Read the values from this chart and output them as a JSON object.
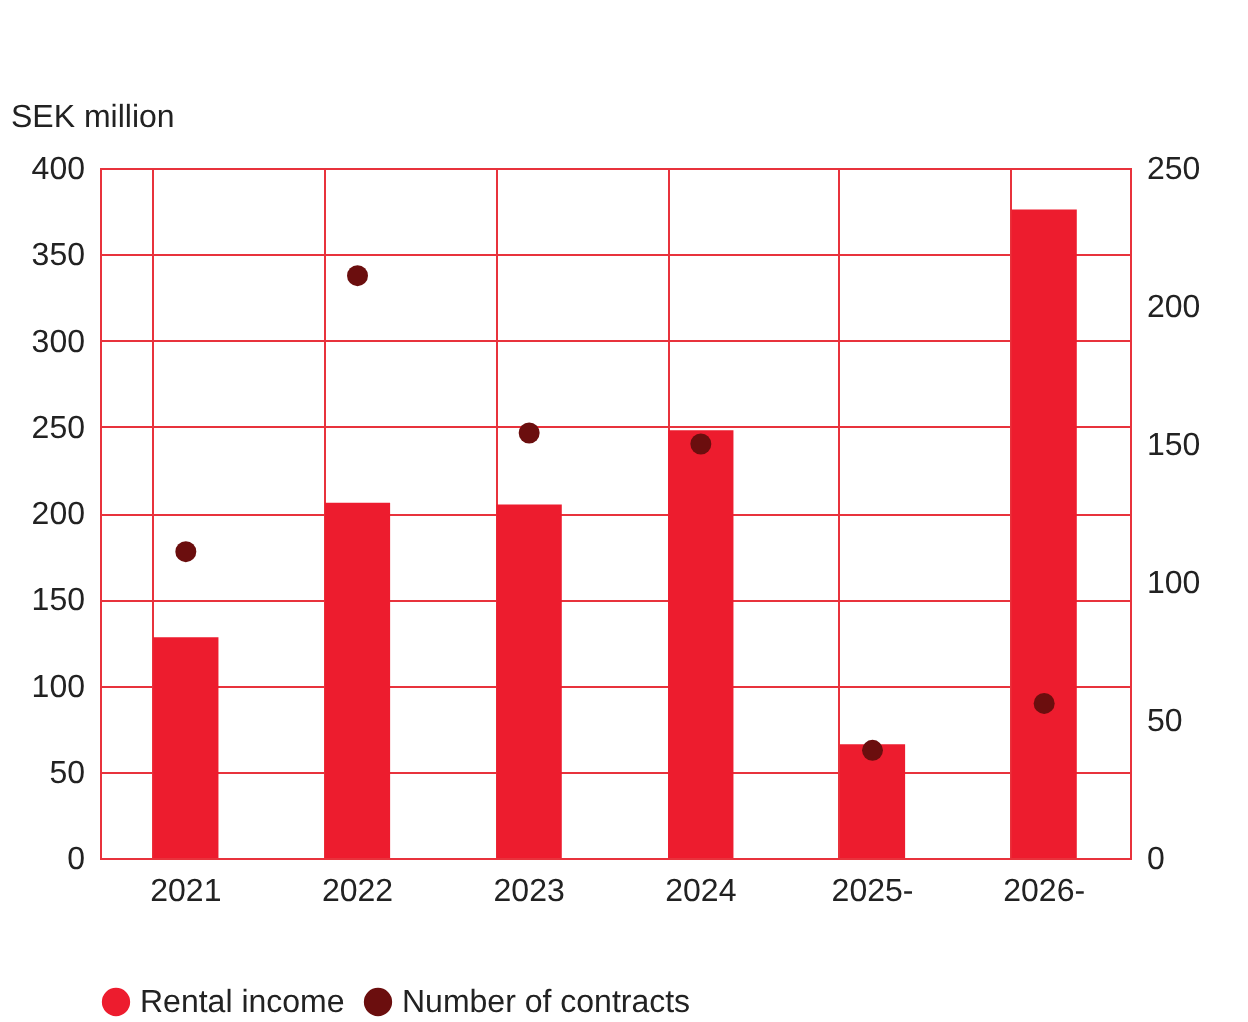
{
  "chart_data": {
    "type": "bar",
    "ylabel": "SEK million",
    "categories": [
      "2021",
      "2022",
      "2023",
      "2024",
      "2025-",
      "2026-"
    ],
    "series": [
      {
        "name": "Rental income",
        "color": "#ed1c2e",
        "values": [
          128,
          206,
          205,
          248,
          66,
          376
        ]
      },
      {
        "name": "Number of contracts",
        "type": "scatter",
        "axis": "y2",
        "color": "#6b0e0e",
        "values": [
          111,
          211,
          154,
          150,
          39,
          56
        ]
      }
    ],
    "ylim": [
      0,
      400
    ],
    "yticks": [
      0,
      50,
      100,
      150,
      200,
      250,
      300,
      350,
      400
    ],
    "y2lim": [
      0,
      250
    ],
    "y2ticks": [
      0,
      50,
      100,
      150,
      200,
      250
    ],
    "grid": true,
    "legend": "bottom",
    "marker": "circle"
  }
}
